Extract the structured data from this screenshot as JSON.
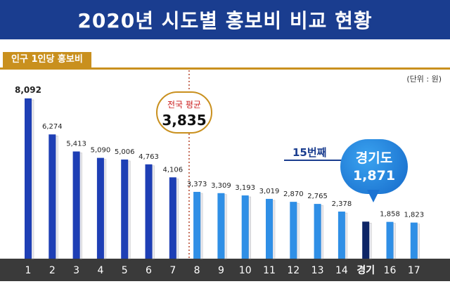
{
  "title": "2020년 시도별 홍보비 비교 현황",
  "subtitle": "인구 1인당 홍보비",
  "unit": "(단위 : 원)",
  "average": {
    "label": "전국 평균",
    "value": "3,835"
  },
  "highlight": {
    "rank_text": "15번째",
    "name": "경기도",
    "value": "1,871"
  },
  "chart_data": {
    "type": "bar",
    "title": "2020년 시도별 홍보비 비교 현황",
    "ylabel": "인구 1인당 홍보비",
    "categories": [
      "1",
      "2",
      "3",
      "4",
      "5",
      "6",
      "7",
      "8",
      "9",
      "10",
      "11",
      "12",
      "13",
      "14",
      "경기",
      "16",
      "17"
    ],
    "values": [
      8092,
      6274,
      5413,
      5090,
      5006,
      4763,
      4106,
      3373,
      3309,
      3193,
      3019,
      2870,
      2765,
      2378,
      1871,
      1858,
      1823
    ],
    "labels": [
      "8,092",
      "6,274",
      "5,413",
      "5,090",
      "5,006",
      "4,763",
      "4,106",
      "3,373",
      "3,309",
      "3,193",
      "3,019",
      "2,870",
      "2,765",
      "2,378",
      "",
      "1,858",
      "1,823"
    ],
    "average": 3835,
    "highlight_index": 14,
    "ylim": [
      0,
      9000
    ],
    "colors": {
      "above": "#1e3fb5",
      "below": "#2f8fe6",
      "highlight": "#0d2566"
    }
  }
}
